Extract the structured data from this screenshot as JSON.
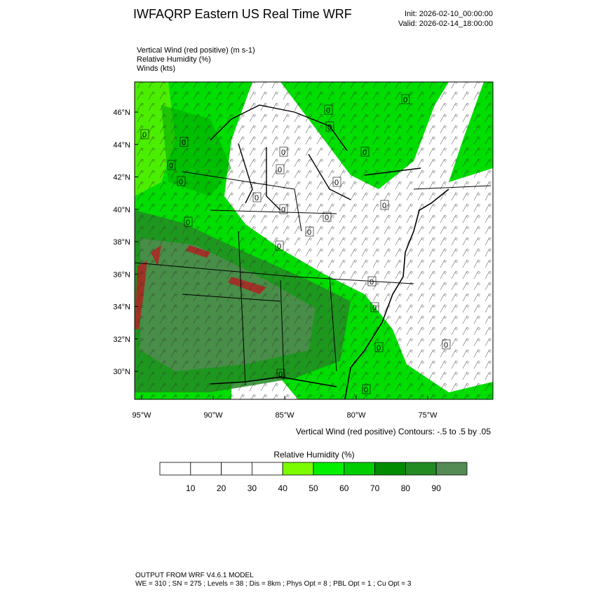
{
  "header": {
    "title": "IWFAQRP Eastern US Real Time WRF",
    "init": "Init: 2026-02-10_00:00:00",
    "valid": "Valid: 2026-02-14_18:00:00"
  },
  "fields": [
    "Vertical Wind (red positive)   (m s-1)",
    "Relative Humidity   (%)",
    "Winds   (kts)"
  ],
  "map": {
    "lat_labels": [
      "46°N",
      "44°N",
      "42°N",
      "40°N",
      "38°N",
      "36°N",
      "34°N",
      "32°N",
      "30°N"
    ],
    "lon_labels": [
      "95°W",
      "90°W",
      "85°W",
      "80°W",
      "75°W"
    ],
    "contour_label": "0",
    "contour_note": "Vertical Wind (red positive) Contours: -.5 to .5 by .05"
  },
  "colorbar": {
    "title": "Relative Humidity  (%)",
    "ticks": [
      10,
      20,
      30,
      40,
      50,
      60,
      70,
      80,
      90
    ],
    "colors": [
      "#ffffff",
      "#ffffff",
      "#ffffff",
      "#ffffff",
      "#7cfc00",
      "#00f000",
      "#00cd00",
      "#008b00",
      "#228b22",
      "#548b54"
    ]
  },
  "footer": {
    "line1": "OUTPUT FROM WRF V4.6.1 MODEL",
    "line2": "WE = 310 ; SN = 275 ; Levels = 38 ; Dis = 8km ; Phys Opt = 8 ; PBL Opt = 1 ; Cu Opt = 3"
  }
}
